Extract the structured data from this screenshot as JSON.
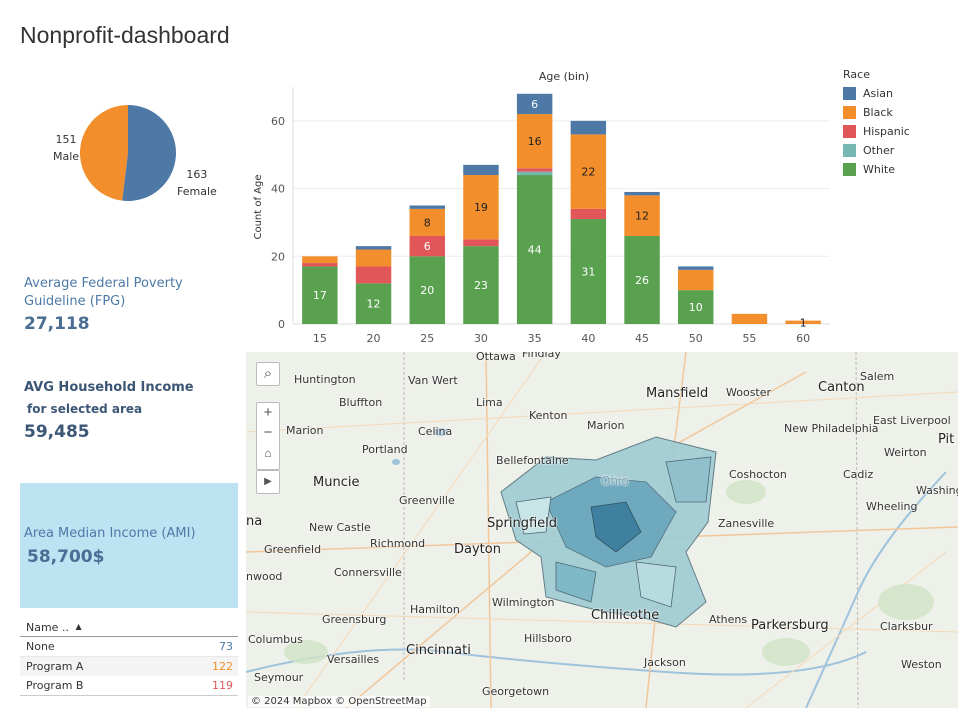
{
  "title": "Nonprofit-dashboard",
  "gender_pie": {
    "slices": [
      {
        "label": "Male",
        "value": 151,
        "color": "#f28e2b"
      },
      {
        "label": "Female",
        "value": 163,
        "color": "#4e79a7"
      }
    ]
  },
  "fpg": {
    "label": "Average Federal Poverty Guideline (FPG)",
    "value": "27,118"
  },
  "household": {
    "label": "AVG Household Income",
    "sublabel": "for selected area",
    "value": "59,485"
  },
  "ami": {
    "label": "Area Median Income (AMI)",
    "value": "58,700$"
  },
  "program_table": {
    "header": "Name ..",
    "sort_icon": "sort-icon",
    "rows": [
      {
        "name": "None",
        "value": "73",
        "color": "#4e79a7"
      },
      {
        "name": "Program A",
        "value": "122",
        "color": "#f28e2b"
      },
      {
        "name": "Program B",
        "value": "119",
        "color": "#e15759"
      }
    ]
  },
  "legend": {
    "title": "Race",
    "items": [
      {
        "label": "Asian",
        "color": "#4e79a7"
      },
      {
        "label": "Black",
        "color": "#f28e2b"
      },
      {
        "label": "Hispanic",
        "color": "#e15759"
      },
      {
        "label": "Other",
        "color": "#76b7b2"
      },
      {
        "label": "White",
        "color": "#59a14f"
      }
    ]
  },
  "chart_data": {
    "type": "bar",
    "stacked": true,
    "title": "Age (bin)",
    "xlabel": "",
    "ylabel": "Count of Age",
    "ylim": [
      0,
      70
    ],
    "yticks": [
      0,
      20,
      40,
      60
    ],
    "categories": [
      "15",
      "20",
      "25",
      "30",
      "35",
      "40",
      "45",
      "50",
      "55",
      "60"
    ],
    "series": [
      {
        "name": "White",
        "color": "#59a14f",
        "values": [
          17,
          12,
          20,
          23,
          44,
          31,
          26,
          10,
          0,
          0
        ],
        "labels": [
          "17",
          "12",
          "20",
          "23",
          "44",
          "31",
          "26",
          "10",
          "",
          ""
        ]
      },
      {
        "name": "Other",
        "color": "#76b7b2",
        "values": [
          0,
          0,
          0,
          0,
          1,
          0,
          0,
          0,
          0,
          0
        ],
        "labels": [
          "",
          "",
          "",
          "",
          "",
          "",
          "",
          "",
          "",
          ""
        ]
      },
      {
        "name": "Hispanic",
        "color": "#e15759",
        "values": [
          1,
          5,
          6,
          2,
          1,
          3,
          0,
          0,
          0,
          0
        ],
        "labels": [
          "",
          "",
          "6",
          "",
          "",
          "",
          "",
          "",
          "",
          ""
        ]
      },
      {
        "name": "Black",
        "color": "#f28e2b",
        "values": [
          2,
          5,
          8,
          19,
          16,
          22,
          12,
          6,
          3,
          1
        ],
        "labels": [
          "",
          "",
          "8",
          "19",
          "16",
          "22",
          "12",
          "",
          "",
          "1"
        ]
      },
      {
        "name": "Asian",
        "color": "#4e79a7",
        "values": [
          0,
          1,
          1,
          3,
          6,
          4,
          1,
          1,
          0,
          0
        ],
        "labels": [
          "",
          "",
          "",
          "",
          "6",
          "",
          "",
          "",
          "",
          ""
        ]
      }
    ],
    "grid": true,
    "legend_position": "right"
  },
  "map": {
    "attribution": "© 2024 Mapbox  © OpenStreetMap",
    "controls": [
      "search-icon",
      "zoom-in-icon",
      "zoom-out-icon",
      "home-icon",
      "play-icon"
    ],
    "places": [
      "Ottawa",
      "Findlay",
      "Huntington",
      "Van Wert",
      "Bluffton",
      "Lima",
      "Mansfield",
      "Wooster",
      "Canton",
      "Salem",
      "Marion",
      "Kenton",
      "Marion",
      "East Liverpool",
      "New Philadelphia",
      "Celina",
      "Portland",
      "Bellefontaine",
      "Weirton",
      "Coshocton",
      "Cadiz",
      "Muncie",
      "Greenville",
      "Washing",
      "Wheeling",
      "Springfield",
      "New Castle",
      "Zanesville",
      "Richmond",
      "Dayton",
      "Greenfield",
      "Connersville",
      "Chillicothe",
      "Greensburg",
      "Hamilton",
      "Wilmington",
      "Athens",
      "Parkersburg",
      "Clarksbur",
      "Columbus",
      "Hillsboro",
      "Versailles",
      "Cincinnati",
      "Jackson",
      "Weston",
      "Seymour",
      "Georgetown",
      "Pit",
      "nwood",
      "na",
      "Ohio"
    ]
  }
}
